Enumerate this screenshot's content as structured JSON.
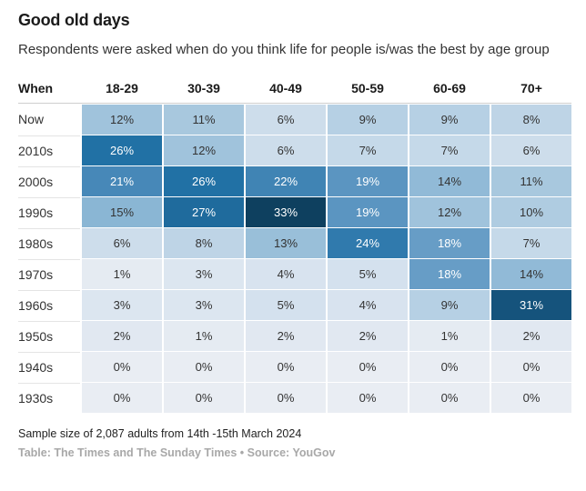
{
  "header": {
    "title": "Good old days",
    "subtitle": "Respondents were asked when do you think life for people is/was the best by age group"
  },
  "chart_data": {
    "type": "heatmap",
    "row_header_label": "When",
    "columns": [
      "18-29",
      "30-39",
      "40-49",
      "50-59",
      "60-69",
      "70+"
    ],
    "rows": [
      "Now",
      "2010s",
      "2000s",
      "1990s",
      "1980s",
      "1970s",
      "1960s",
      "1950s",
      "1940s",
      "1930s"
    ],
    "values": [
      [
        12,
        11,
        6,
        9,
        9,
        8
      ],
      [
        26,
        12,
        6,
        7,
        7,
        6
      ],
      [
        21,
        26,
        22,
        19,
        14,
        11
      ],
      [
        15,
        27,
        33,
        19,
        12,
        10
      ],
      [
        6,
        8,
        13,
        24,
        18,
        7
      ],
      [
        1,
        3,
        4,
        5,
        18,
        14
      ],
      [
        3,
        3,
        5,
        4,
        9,
        31
      ],
      [
        2,
        1,
        2,
        2,
        1,
        2
      ],
      [
        0,
        0,
        0,
        0,
        0,
        0
      ],
      [
        0,
        0,
        0,
        0,
        0,
        0
      ]
    ],
    "unit_suffix": "%",
    "value_range": [
      0,
      33
    ],
    "color_scale": {
      "stops": [
        [
          0,
          "#e9edf3"
        ],
        [
          5,
          "#d4e1ee"
        ],
        [
          10,
          "#afcce1"
        ],
        [
          15,
          "#8ab6d4"
        ],
        [
          20,
          "#4f8dbc"
        ],
        [
          26,
          "#2171a5"
        ],
        [
          31,
          "#15537c"
        ],
        [
          33,
          "#0e405f"
        ]
      ],
      "white_text_min": 18
    },
    "legend_position": "none",
    "grid": false
  },
  "footer": {
    "note": "Sample size of 2,087 adults from 14th -15th March 2024",
    "byline": "Table: The Times and The Sunday Times • Source: YouGov"
  }
}
